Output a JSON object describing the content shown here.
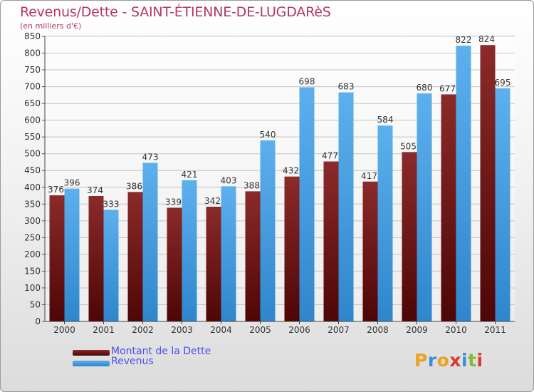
{
  "title": "Revenus/Dette - SAINT-ÉTIENNE-DE-LUGDARèS",
  "subtitle": "(en milliers d'€)",
  "logo_text": "Proxiti",
  "colors": {
    "dette": "#7a1c1c",
    "revenus": "#4aa3e6",
    "title": "#b5385d",
    "legend_text": "#4a4cf0"
  },
  "legend": [
    {
      "label": "Montant de la Dette",
      "color": "#7a1c1c"
    },
    {
      "label": "Revenus",
      "color": "#4aa3e6"
    }
  ],
  "chart_data": {
    "type": "bar",
    "categories": [
      "2000",
      "2001",
      "2002",
      "2003",
      "2004",
      "2005",
      "2006",
      "2007",
      "2008",
      "2009",
      "2010",
      "2011"
    ],
    "series": [
      {
        "name": "Montant de la Dette",
        "values": [
          376,
          374,
          386,
          339,
          342,
          388,
          432,
          477,
          417,
          505,
          677,
          824
        ]
      },
      {
        "name": "Revenus",
        "values": [
          396,
          333,
          473,
          421,
          403,
          540,
          698,
          683,
          584,
          680,
          822,
          695
        ]
      }
    ],
    "ylim": [
      0,
      850
    ],
    "ytick_step": 50,
    "grid": true,
    "legend_position": "bottom-left"
  }
}
